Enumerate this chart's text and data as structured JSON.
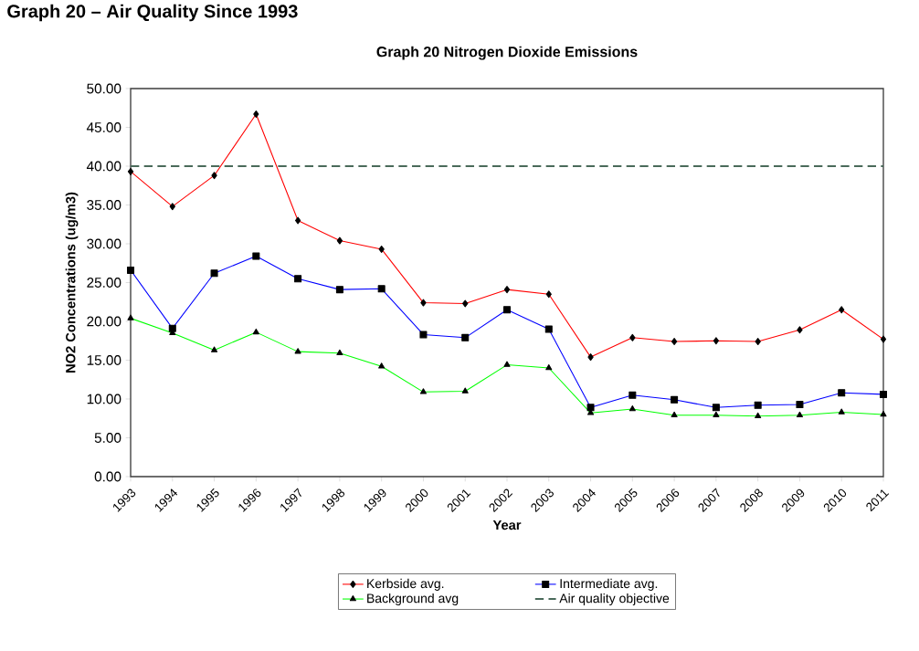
{
  "chart_data": {
    "type": "line",
    "title": "Graph 20 Nitrogen Dioxide Emissions",
    "xlabel": "Year",
    "ylabel": "NO2 Concentrations (ug/m3)",
    "annotations": [
      "Graph 20 – Air Quality Since 1993"
    ],
    "categories": [
      "1993",
      "1994",
      "1995",
      "1996",
      "1997",
      "1998",
      "1999",
      "2000",
      "2001",
      "2002",
      "2003",
      "2004",
      "2005",
      "2006",
      "2007",
      "2008",
      "2009",
      "2010",
      "2011"
    ],
    "series": [
      {
        "name": "Kerbside avg.",
        "color": "#ff0000",
        "marker": "diamond",
        "values": [
          39.3,
          34.8,
          38.8,
          46.7,
          33.0,
          30.4,
          29.3,
          22.4,
          22.3,
          24.1,
          23.5,
          15.4,
          17.9,
          17.4,
          17.5,
          17.4,
          18.9,
          21.5,
          17.7
        ]
      },
      {
        "name": "Intermediate avg.",
        "color": "#0000ff",
        "marker": "square",
        "values": [
          26.6,
          19.1,
          26.2,
          28.4,
          25.5,
          24.1,
          24.2,
          18.3,
          17.9,
          21.5,
          19.0,
          8.9,
          10.5,
          9.9,
          8.9,
          9.2,
          9.3,
          10.8,
          10.6
        ]
      },
      {
        "name": "Background avg",
        "color": "#00ff00",
        "marker": "triangle",
        "values": [
          20.4,
          18.5,
          16.3,
          18.6,
          16.1,
          15.9,
          14.2,
          10.9,
          11.0,
          14.4,
          14.0,
          8.2,
          8.7,
          7.9,
          7.9,
          7.8,
          7.9,
          8.3,
          8.0
        ]
      }
    ],
    "ref_lines": [
      {
        "axis": "y",
        "value": 40,
        "label": "Air quality objective",
        "color": "#4a6a5a",
        "line_style": "dashed"
      }
    ],
    "ylim": [
      0,
      50
    ],
    "yticks": [
      {
        "value": 0,
        "label": "0.00"
      },
      {
        "value": 5,
        "label": "5.00"
      },
      {
        "value": 10,
        "label": "10.00"
      },
      {
        "value": 15,
        "label": "15.00"
      },
      {
        "value": 20,
        "label": "20.00"
      },
      {
        "value": 25,
        "label": "25.00"
      },
      {
        "value": 30,
        "label": "30.00"
      },
      {
        "value": 35,
        "label": "35.00"
      },
      {
        "value": 40,
        "label": "40.00"
      },
      {
        "value": 45,
        "label": "45.00"
      },
      {
        "value": 50,
        "label": "50.00"
      }
    ],
    "grid": false,
    "legend": "bottom"
  }
}
